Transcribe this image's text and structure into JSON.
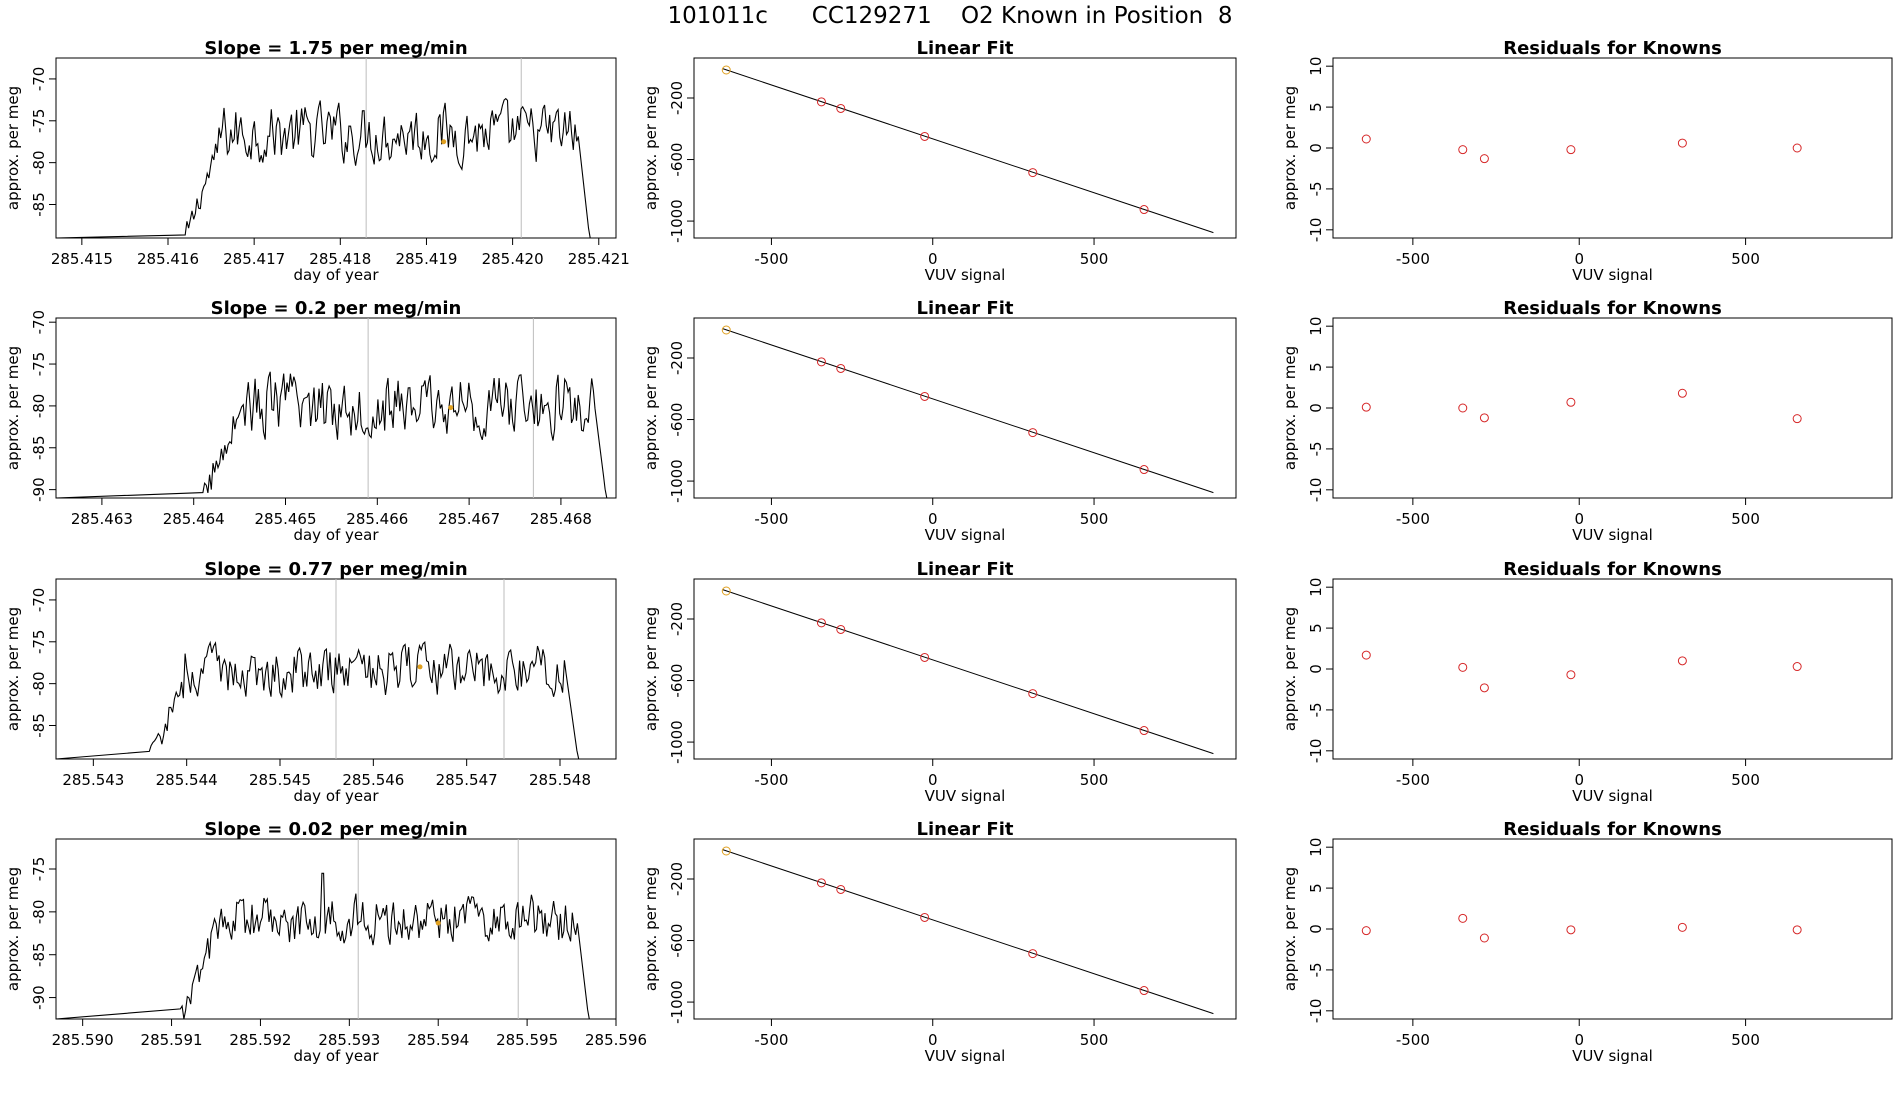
{
  "title": "101011c      CC129271    O2 Known in Position  8",
  "style": {
    "trace_color": "#000000",
    "marker_color": "#e0a020",
    "point_color": "#d62728",
    "vline_color": "#bdbdbd",
    "fit_color": "#000000"
  },
  "chart_data": [
    {
      "type": "line",
      "row": 0,
      "panel": "timeseries",
      "title": "Slope =  1.75  per meg/min",
      "xlabel": "day of year",
      "ylabel": "approx. per meg",
      "xlim": [
        285.4147,
        285.4212
      ],
      "ylim": [
        -89,
        -67.5
      ],
      "xticks": [
        285.415,
        285.416,
        285.417,
        285.418,
        285.419,
        285.42,
        285.421
      ],
      "xtick_labels": [
        "285.415",
        "285.416",
        "285.417",
        "285.418",
        "285.419",
        "285.420",
        "285.421"
      ],
      "yticks": [
        -85,
        -80,
        -75,
        -70
      ],
      "ytick_labels": [
        "-85",
        "-80",
        "-75",
        "-70"
      ],
      "vlines": [
        285.4183,
        285.4201
      ],
      "trace": {
        "start": 285.4162,
        "end": 285.4209,
        "baseline": -89,
        "mean": -76.5,
        "amp": 2.8,
        "min": -89,
        "max": -69.5,
        "spike_at": null,
        "spike_val": null
      },
      "marker": {
        "x": 285.4192,
        "y": -77.5
      }
    },
    {
      "type": "scatter",
      "row": 0,
      "panel": "fit",
      "title": "Linear Fit",
      "xlabel": "VUV signal",
      "ylabel": "approx. per meg",
      "xlim": [
        -740,
        940
      ],
      "ylim": [
        -1110,
        60
      ],
      "xticks": [
        -500,
        0,
        500
      ],
      "xtick_labels": [
        "-500",
        "0",
        "500"
      ],
      "yticks": [
        -1000,
        -600,
        -200
      ],
      "ytick_labels": [
        "-1000",
        "-600",
        "-200"
      ],
      "fit_line": {
        "x": [
          -650,
          870
        ],
        "y": [
          -10,
          -1075
        ]
      },
      "points": [
        {
          "x": -640,
          "y": -18,
          "highlight": true
        },
        {
          "x": -345,
          "y": -225
        },
        {
          "x": -285,
          "y": -268
        },
        {
          "x": -25,
          "y": -450
        },
        {
          "x": 310,
          "y": -685
        },
        {
          "x": 655,
          "y": -925
        }
      ]
    },
    {
      "type": "scatter",
      "row": 0,
      "panel": "residuals",
      "title": "Residuals for Knowns",
      "xlabel": "VUV signal",
      "ylabel": "approx. per meg",
      "xlim": [
        -740,
        940
      ],
      "ylim": [
        -11,
        11
      ],
      "xticks": [
        -500,
        0,
        500
      ],
      "xtick_labels": [
        "-500",
        "0",
        "500"
      ],
      "yticks": [
        -10,
        -5,
        0,
        5,
        10
      ],
      "ytick_labels": [
        "-10",
        "-5",
        "0",
        "5",
        "10"
      ],
      "points": [
        {
          "x": -640,
          "y": 1.1
        },
        {
          "x": -350,
          "y": -0.2
        },
        {
          "x": -285,
          "y": -1.3
        },
        {
          "x": -25,
          "y": -0.2
        },
        {
          "x": 310,
          "y": 0.6
        },
        {
          "x": 655,
          "y": 0.0
        }
      ]
    },
    {
      "type": "line",
      "row": 1,
      "panel": "timeseries",
      "title": "Slope =  0.2  per meg/min",
      "xlabel": "day of year",
      "ylabel": "approx. per meg",
      "xlim": [
        285.4625,
        285.4686
      ],
      "ylim": [
        -91,
        -69.5
      ],
      "xticks": [
        285.463,
        285.464,
        285.465,
        285.466,
        285.467,
        285.468
      ],
      "xtick_labels": [
        "285.463",
        "285.464",
        "285.465",
        "285.466",
        "285.467",
        "285.468"
      ],
      "yticks": [
        -90,
        -85,
        -80,
        -75,
        -70
      ],
      "ytick_labels": [
        "-90",
        "-85",
        "-80",
        "-75",
        "-70"
      ],
      "vlines": [
        285.4659,
        285.4677
      ],
      "trace": {
        "start": 285.4641,
        "end": 285.4685,
        "baseline": -91,
        "mean": -80,
        "amp": 3.0,
        "min": -91,
        "max": -73,
        "spike_at": null,
        "spike_val": null
      },
      "marker": {
        "x": 285.4668,
        "y": -80.2
      }
    },
    {
      "type": "scatter",
      "row": 1,
      "panel": "fit",
      "title": "Linear Fit",
      "xlabel": "VUV signal",
      "ylabel": "approx. per meg",
      "xlim": [
        -740,
        940
      ],
      "ylim": [
        -1110,
        60
      ],
      "xticks": [
        -500,
        0,
        500
      ],
      "xtick_labels": [
        "-500",
        "0",
        "500"
      ],
      "yticks": [
        -1000,
        -600,
        -200
      ],
      "ytick_labels": [
        "-1000",
        "-600",
        "-200"
      ],
      "fit_line": {
        "x": [
          -650,
          870
        ],
        "y": [
          -10,
          -1075
        ]
      },
      "points": [
        {
          "x": -640,
          "y": -18,
          "highlight": true
        },
        {
          "x": -345,
          "y": -225
        },
        {
          "x": -285,
          "y": -268
        },
        {
          "x": -25,
          "y": -450
        },
        {
          "x": 310,
          "y": -685
        },
        {
          "x": 655,
          "y": -925
        }
      ]
    },
    {
      "type": "scatter",
      "row": 1,
      "panel": "residuals",
      "title": "Residuals for Knowns",
      "xlabel": "VUV signal",
      "ylabel": "approx. per meg",
      "xlim": [
        -740,
        940
      ],
      "ylim": [
        -11,
        11
      ],
      "xticks": [
        -500,
        0,
        500
      ],
      "xtick_labels": [
        "-500",
        "0",
        "500"
      ],
      "yticks": [
        -10,
        -5,
        0,
        5,
        10
      ],
      "ytick_labels": [
        "-10",
        "-5",
        "0",
        "5",
        "10"
      ],
      "points": [
        {
          "x": -640,
          "y": 0.1
        },
        {
          "x": -350,
          "y": 0.0
        },
        {
          "x": -285,
          "y": -1.2
        },
        {
          "x": -25,
          "y": 0.7
        },
        {
          "x": 310,
          "y": 1.8
        },
        {
          "x": 655,
          "y": -1.3
        }
      ]
    },
    {
      "type": "line",
      "row": 2,
      "panel": "timeseries",
      "title": "Slope =  0.77  per meg/min",
      "xlabel": "day of year",
      "ylabel": "approx. per meg",
      "xlim": [
        285.5426,
        285.5486
      ],
      "ylim": [
        -89,
        -67.5
      ],
      "xticks": [
        285.543,
        285.544,
        285.545,
        285.546,
        285.547,
        285.548
      ],
      "xtick_labels": [
        "285.543",
        "285.544",
        "285.545",
        "285.546",
        "285.547",
        "285.548"
      ],
      "yticks": [
        -85,
        -80,
        -75,
        -70
      ],
      "ytick_labels": [
        "-85",
        "-80",
        "-75",
        "-70"
      ],
      "vlines": [
        285.5456,
        285.5474
      ],
      "trace": {
        "start": 285.5436,
        "end": 285.5482,
        "baseline": -89,
        "mean": -78.5,
        "amp": 2.4,
        "min": -89,
        "max": -73.5,
        "spike_at": null,
        "spike_val": null
      },
      "marker": {
        "x": 285.5465,
        "y": -78.0
      }
    },
    {
      "type": "scatter",
      "row": 2,
      "panel": "fit",
      "title": "Linear Fit",
      "xlabel": "VUV signal",
      "ylabel": "approx. per meg",
      "xlim": [
        -740,
        940
      ],
      "ylim": [
        -1110,
        60
      ],
      "xticks": [
        -500,
        0,
        500
      ],
      "xtick_labels": [
        "-500",
        "0",
        "500"
      ],
      "yticks": [
        -1000,
        -600,
        -200
      ],
      "ytick_labels": [
        "-1000",
        "-600",
        "-200"
      ],
      "fit_line": {
        "x": [
          -650,
          870
        ],
        "y": [
          -10,
          -1075
        ]
      },
      "points": [
        {
          "x": -640,
          "y": -18,
          "highlight": true
        },
        {
          "x": -345,
          "y": -225
        },
        {
          "x": -285,
          "y": -268
        },
        {
          "x": -25,
          "y": -450
        },
        {
          "x": 310,
          "y": -685
        },
        {
          "x": 655,
          "y": -925
        }
      ]
    },
    {
      "type": "scatter",
      "row": 2,
      "panel": "residuals",
      "title": "Residuals for Knowns",
      "xlabel": "VUV signal",
      "ylabel": "approx. per meg",
      "xlim": [
        -740,
        940
      ],
      "ylim": [
        -11,
        11
      ],
      "xticks": [
        -500,
        0,
        500
      ],
      "xtick_labels": [
        "-500",
        "0",
        "500"
      ],
      "yticks": [
        -10,
        -5,
        0,
        5,
        10
      ],
      "ytick_labels": [
        "-10",
        "-5",
        "0",
        "5",
        "10"
      ],
      "points": [
        {
          "x": -640,
          "y": 1.7
        },
        {
          "x": -350,
          "y": 0.2
        },
        {
          "x": -285,
          "y": -2.3
        },
        {
          "x": -25,
          "y": -0.7
        },
        {
          "x": 310,
          "y": 1.0
        },
        {
          "x": 655,
          "y": 0.3
        }
      ]
    },
    {
      "type": "line",
      "row": 3,
      "panel": "timeseries",
      "title": "Slope =  0.02  per meg/min",
      "xlabel": "day of year",
      "ylabel": "approx. per meg",
      "xlim": [
        285.5897,
        285.596
      ],
      "ylim": [
        -92.5,
        -71.5
      ],
      "xticks": [
        285.59,
        285.591,
        285.592,
        285.593,
        285.594,
        285.595,
        285.596
      ],
      "xtick_labels": [
        "285.590",
        "285.591",
        "285.592",
        "285.593",
        "285.594",
        "285.595",
        "285.596"
      ],
      "yticks": [
        -90,
        -85,
        -80,
        -75
      ],
      "ytick_labels": [
        "-90",
        "-85",
        "-80",
        "-75"
      ],
      "vlines": [
        285.5931,
        285.5949
      ],
      "trace": {
        "start": 285.5911,
        "end": 285.5957,
        "baseline": -92.5,
        "mean": -81,
        "amp": 2.3,
        "min": -92.5,
        "max": -75,
        "spike_at": 285.5927,
        "spike_val": -75.5
      },
      "marker": {
        "x": 285.594,
        "y": -81.3
      }
    },
    {
      "type": "scatter",
      "row": 3,
      "panel": "fit",
      "title": "Linear Fit",
      "xlabel": "VUV signal",
      "ylabel": "approx. per meg",
      "xlim": [
        -740,
        940
      ],
      "ylim": [
        -1110,
        60
      ],
      "xticks": [
        -500,
        0,
        500
      ],
      "xtick_labels": [
        "-500",
        "0",
        "500"
      ],
      "yticks": [
        -1000,
        -600,
        -200
      ],
      "ytick_labels": [
        "-1000",
        "-600",
        "-200"
      ],
      "fit_line": {
        "x": [
          -650,
          870
        ],
        "y": [
          -10,
          -1075
        ]
      },
      "points": [
        {
          "x": -640,
          "y": -18,
          "highlight": true
        },
        {
          "x": -345,
          "y": -225
        },
        {
          "x": -285,
          "y": -268
        },
        {
          "x": -25,
          "y": -450
        },
        {
          "x": 310,
          "y": -685
        },
        {
          "x": 655,
          "y": -925
        }
      ]
    },
    {
      "type": "scatter",
      "row": 3,
      "panel": "residuals",
      "title": "Residuals for Knowns",
      "xlabel": "VUV signal",
      "ylabel": "approx. per meg",
      "xlim": [
        -740,
        940
      ],
      "ylim": [
        -11,
        11
      ],
      "xticks": [
        -500,
        0,
        500
      ],
      "xtick_labels": [
        "-500",
        "0",
        "500"
      ],
      "yticks": [
        -10,
        -5,
        0,
        5,
        10
      ],
      "ytick_labels": [
        "-10",
        "-5",
        "0",
        "5",
        "10"
      ],
      "points": [
        {
          "x": -640,
          "y": -0.2
        },
        {
          "x": -350,
          "y": 1.3
        },
        {
          "x": -285,
          "y": -1.1
        },
        {
          "x": -25,
          "y": -0.1
        },
        {
          "x": 310,
          "y": 0.2
        },
        {
          "x": 655,
          "y": -0.1
        }
      ]
    }
  ]
}
